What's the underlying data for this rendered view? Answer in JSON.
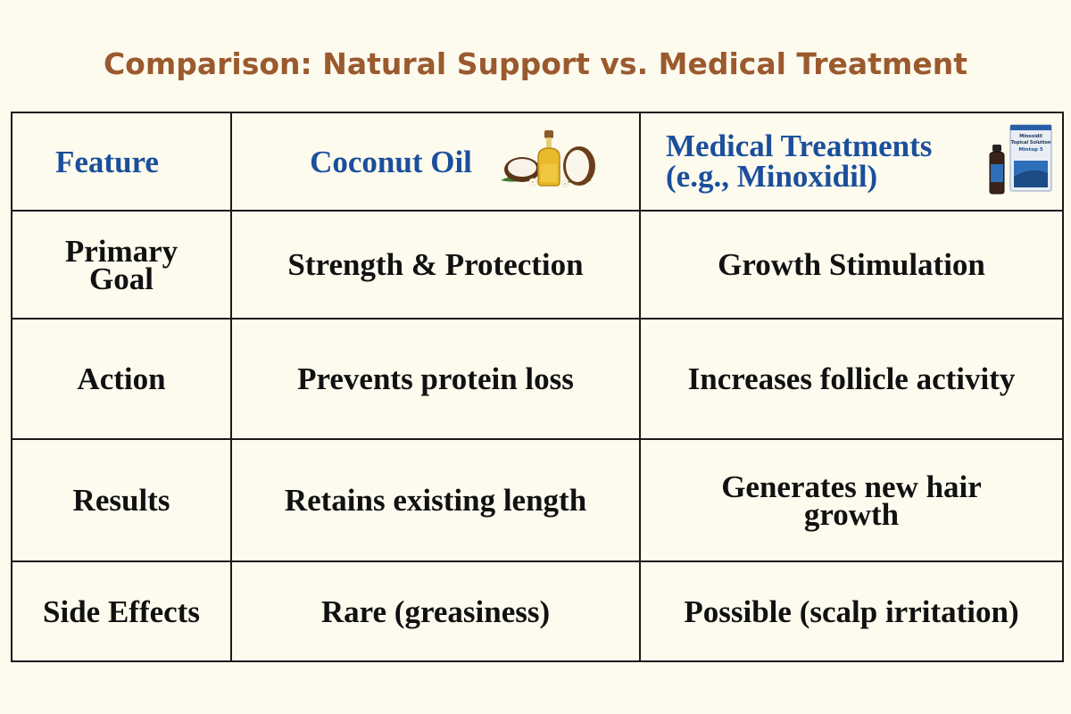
{
  "title": "Comparison: Natural Support vs. Medical Treatment",
  "headers": {
    "feature": "Feature",
    "coconut": "Coconut Oil",
    "medical_line1": "Medical Treatments",
    "medical_line2": "(e.g., Minoxidil)"
  },
  "icons": {
    "coconut": "coconut-oil-bottle-icon",
    "medical": "minoxidil-bottle-icon"
  },
  "product_label": {
    "brand_line1": "Minoxidil",
    "brand_line2": "Topical Solution",
    "brand_line3": "Mintop 5"
  },
  "rows": [
    {
      "feature_line1": "Primary",
      "feature_line2": "Goal",
      "coconut": "Strength & Protection",
      "medical": "Growth Stimulation"
    },
    {
      "feature": "Action",
      "coconut": "Prevents protein loss",
      "medical": "Increases follicle activity"
    },
    {
      "feature": "Results",
      "coconut": "Retains existing length",
      "medical_line1": "Generates new hair",
      "medical_line2": "growth"
    },
    {
      "feature": "Side Effects",
      "coconut": "Rare (greasiness)",
      "medical": "Possible (scalp irritation)"
    }
  ],
  "colors": {
    "background": "#fdfaee",
    "title": "#9a5a2e",
    "header_text": "#1b4f9c",
    "body_text": "#111111",
    "border": "#1a1a1a"
  }
}
